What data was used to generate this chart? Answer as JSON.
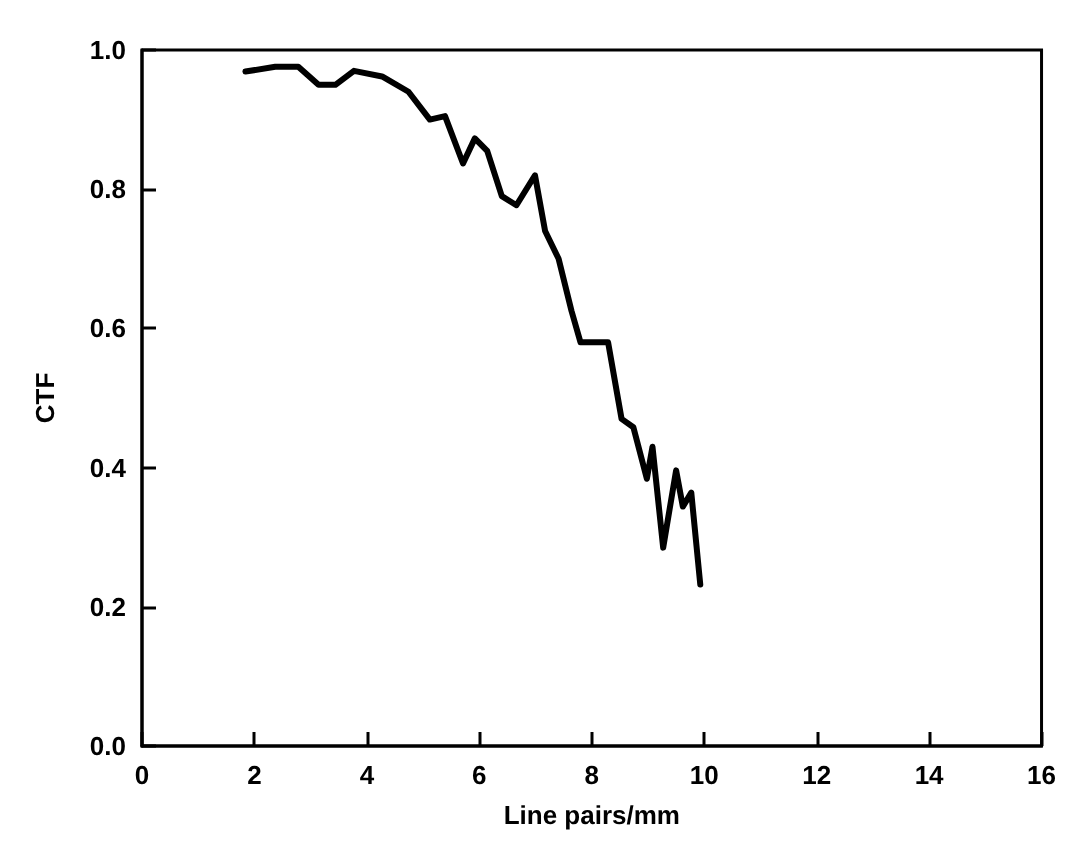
{
  "chart_data": {
    "type": "line",
    "xlabel": "Line pairs/mm",
    "ylabel": "CTF",
    "xlim": [
      0,
      16
    ],
    "ylim": [
      0,
      1
    ],
    "xticks": [
      0,
      2,
      4,
      6,
      8,
      10,
      12,
      14,
      16
    ],
    "yticks": [
      {
        "value": 0,
        "label": "0.0"
      },
      0.2,
      0.4,
      0.6,
      0.8,
      {
        "value": 1,
        "label": "1.0"
      }
    ],
    "grid": false,
    "marker": "none",
    "line_style": "solid",
    "series": [
      {
        "color": "#000000",
        "x": [
          1.84,
          2.37,
          2.78,
          3.14,
          3.44,
          3.77,
          4.27,
          4.74,
          5.12,
          5.39,
          5.71,
          5.92,
          6.14,
          6.4,
          6.66,
          6.99,
          7.17,
          7.41,
          7.64,
          7.8,
          8.29,
          8.53,
          8.74,
          8.98,
          9.08,
          9.27,
          9.5,
          9.62,
          9.77,
          9.93
        ],
        "values": [
          0.969,
          0.976,
          0.976,
          0.95,
          0.95,
          0.97,
          0.962,
          0.94,
          0.9,
          0.905,
          0.837,
          0.873,
          0.855,
          0.79,
          0.777,
          0.82,
          0.74,
          0.7,
          0.625,
          0.58,
          0.58,
          0.47,
          0.458,
          0.384,
          0.43,
          0.285,
          0.396,
          0.344,
          0.364,
          0.232
        ]
      }
    ]
  }
}
